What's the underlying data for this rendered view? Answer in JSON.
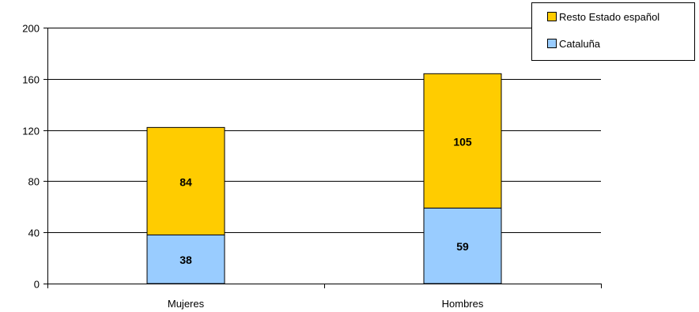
{
  "chart_data": {
    "type": "bar",
    "stacked": true,
    "categories": [
      "Mujeres",
      "Hombres"
    ],
    "series": [
      {
        "name": "Cataluña",
        "values": [
          38,
          59
        ],
        "color": "#99ccff"
      },
      {
        "name": "Resto Estado español",
        "values": [
          84,
          105
        ],
        "color": "#ffcc00"
      }
    ],
    "ylim": [
      0,
      200
    ],
    "yticks": [
      0,
      40,
      80,
      120,
      160,
      200
    ],
    "grid": true,
    "legend": "top-right",
    "legend_order": [
      "Resto Estado español",
      "Cataluña"
    ]
  }
}
